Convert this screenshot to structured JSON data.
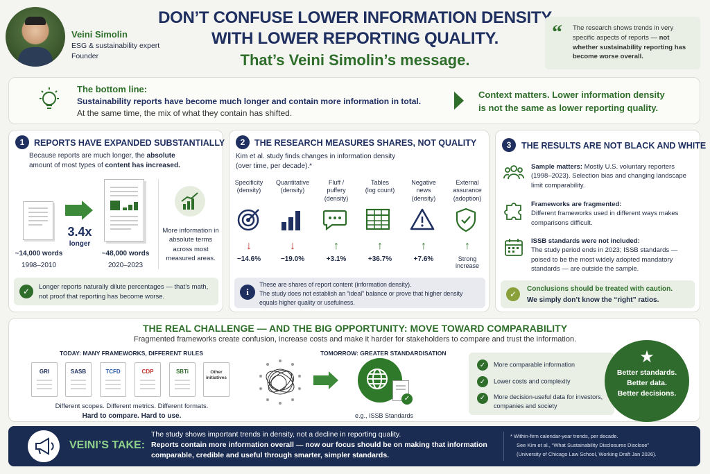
{
  "header": {
    "name": "Veini Simolin",
    "role1": "ESG & sustainability expert",
    "role2": "Founder",
    "title_line1": "DON’T CONFUSE LOWER INFORMATION DENSITY",
    "title_line2": "WITH LOWER REPORTING QUALITY.",
    "subtitle": "That’s Veini Simolin’s message.",
    "quote_text": "The research shows trends in very specific aspects of reports —",
    "quote_bold": "not whether sustainability reporting has become worse overall."
  },
  "bottom_line": {
    "heading": "The bottom line:",
    "bold": "Sustainability reports have become much longer and contain more information in total.",
    "text": "At the same time, the mix of what they contain has shifted.",
    "context_line1": "Context matters. Lower information density",
    "context_line2": "is not the same as lower reporting quality."
  },
  "s1": {
    "num": "1",
    "heading": "REPORTS HAVE EXPANDED SUBSTANTIALLY",
    "intro_a": "Because reports are much longer, the",
    "intro_b": "absolute",
    "intro_c": "amount of most types of",
    "intro_d": "content has increased.",
    "left_words": "~14,000 words",
    "left_years": "1998–2010",
    "factor": "3.4x",
    "factor_label": "longer",
    "right_words": "~48,000 words",
    "right_years": "2020–2023",
    "more_info": "More information in absolute terms across most measured areas.",
    "note_line1": "Longer reports naturally dilute percentages — that’s math,",
    "note_line2": "not proof that reporting has become worse."
  },
  "s2": {
    "num": "2",
    "heading": "THE RESEARCH MEASURES SHARES, NOT QUALITY",
    "intro1": "Kim et al. study finds changes in information density",
    "intro2": "(over time, per decade).*",
    "metrics": [
      {
        "label": "Specificity",
        "sub": "(density)",
        "value": "−14.6%",
        "dir": "down"
      },
      {
        "label": "Quantitative",
        "sub": "(density)",
        "value": "−19.0%",
        "dir": "down"
      },
      {
        "label": "Fluff /",
        "sub": "puffery (density)",
        "value": "+3.1%",
        "dir": "up"
      },
      {
        "label": "Tables",
        "sub": "(log count)",
        "value": "+36.7%",
        "dir": "up"
      },
      {
        "label": "Negative news",
        "sub": "(density)",
        "value": "+7.6%",
        "dir": "up"
      },
      {
        "label": "External",
        "sub": "assurance (adoption)",
        "value": "Strong increase",
        "dir": "up"
      }
    ],
    "note_line1": "These are shares of report content (information density).",
    "note_line2": "The study does not establish an “ideal” balance or prove that higher density",
    "note_line3": "equals higher quality or usefulness."
  },
  "s3": {
    "num": "3",
    "heading": "THE RESULTS ARE NOT BLACK AND WHITE",
    "items": [
      {
        "bold": "Sample matters:",
        "text": "Mostly U.S. voluntary reporters (1998–2023). Selection bias and changing landscape limit comparability."
      },
      {
        "bold": "Frameworks are fragmented:",
        "text": "Different frameworks used in different ways makes comparisons difficult."
      },
      {
        "bold": "ISSB standards were not included:",
        "text": "The study period ends in 2023; ISSB standards — poised to be the most widely adopted mandatory standards — are outside the sample."
      }
    ],
    "caution1": "Conclusions should be treated with caution.",
    "caution2": "We simply don’t know the “right” ratios."
  },
  "challenge": {
    "heading": "THE REAL CHALLENGE — AND THE BIG OPPORTUNITY: MOVE TOWARD COMPARABILITY",
    "sub": "Fragmented frameworks create confusion, increase costs and make it harder for stakeholders to compare and trust the information.",
    "today_label": "TODAY: MANY FRAMEWORKS, DIFFERENT RULES",
    "frameworks": [
      "GRI",
      "SASB",
      "TCFD",
      "CDP",
      "SBTi",
      "Other initiatives"
    ],
    "today_note": "Different scopes. Different metrics. Different formats.",
    "today_bold": "Hard to compare. Hard to use.",
    "tomorrow_label": "TOMORROW: GREATER STANDARDISATION",
    "tomorrow_caption": "e.g., ISSB Standards",
    "benefits": [
      "More comparable information",
      "Lower costs and complexity",
      "More decision-useful data for investors, companies and society"
    ],
    "circle1": "Better standards.",
    "circle2": "Better data.",
    "circle3": "Better decisions."
  },
  "footer": {
    "label": "VEINI’S TAKE:",
    "line1": "The study shows important trends in density, not a decline in reporting quality.",
    "line2": "Reports contain more information overall — now our focus should be on making that information",
    "line3": "comparable, credible and useful through smarter, simpler standards.",
    "fn1": "*  Within-firm calendar-year trends, per decade.",
    "fn2": "See Kim et al., “What Sustainability Disclosures Disclose”",
    "fn3": "(University of Chicago Law School, Working Draft Jan 2026)."
  },
  "colors": {
    "navy": "#1f3060",
    "green": "#2e6e2a",
    "red": "#c0392b",
    "dark_green": "#2f6b2c"
  }
}
